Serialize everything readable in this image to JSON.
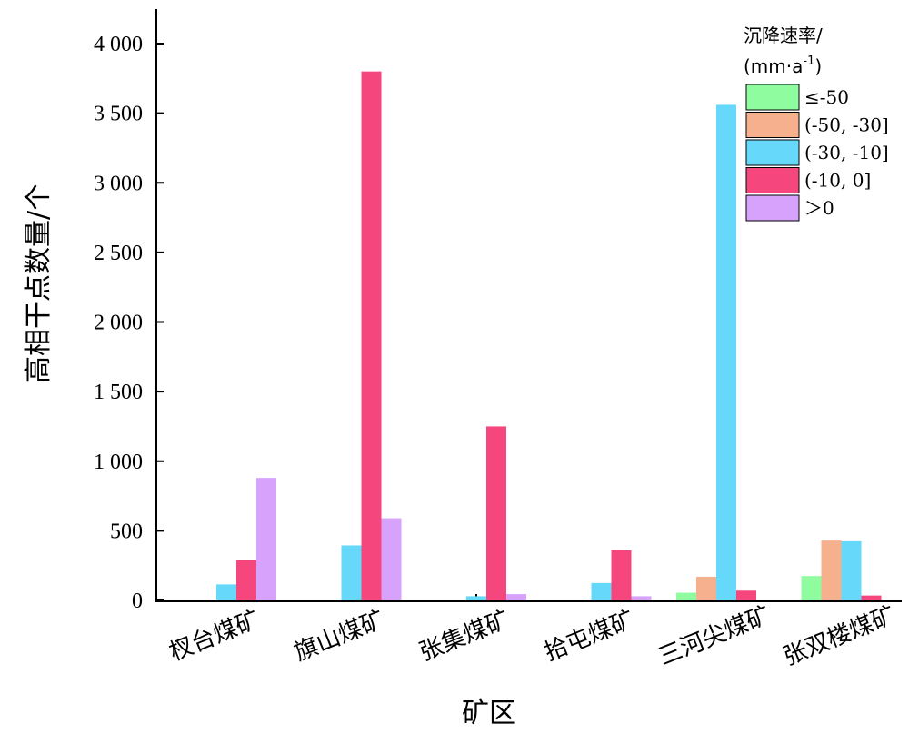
{
  "chart_data": {
    "type": "bar",
    "xlabel": "矿区",
    "ylabel": "高相干点数量/个",
    "ylim": [
      0,
      4200
    ],
    "yticks": [
      0,
      500,
      1000,
      1500,
      2000,
      2500,
      3000,
      3500,
      4000
    ],
    "ytick_labels": [
      "0",
      "500",
      "1 000",
      "1 500",
      "2 000",
      "2 500",
      "3 000",
      "3 500",
      "4 000"
    ],
    "categories": [
      "杈台煤矿",
      "旗山煤矿",
      "张集煤矿",
      "拾屯煤矿",
      "三河尖煤矿",
      "张双楼煤矿"
    ],
    "legend": {
      "title_line1": "沉降速率/",
      "title_line2_main": "(mm·a",
      "title_line2_sup": "-1",
      "title_line2_end": ")",
      "placement": "top-right"
    },
    "series": [
      {
        "name": "≤-50",
        "color": "#8ffd9f",
        "values": [
          0,
          0,
          0,
          0,
          55,
          175
        ]
      },
      {
        "name": "(-50, -30]",
        "color": "#f7b08e",
        "values": [
          0,
          0,
          0,
          0,
          170,
          430
        ]
      },
      {
        "name": "(-30, -10]",
        "color": "#66d9fa",
        "values": [
          115,
          395,
          30,
          125,
          3560,
          425
        ]
      },
      {
        "name": "(-10, 0]",
        "color": "#f6467e",
        "values": [
          290,
          3800,
          1250,
          360,
          70,
          35
        ]
      },
      {
        "name": "＞0",
        "color": "#d7a2fb",
        "values": [
          880,
          590,
          45,
          30,
          0,
          0
        ]
      }
    ]
  }
}
